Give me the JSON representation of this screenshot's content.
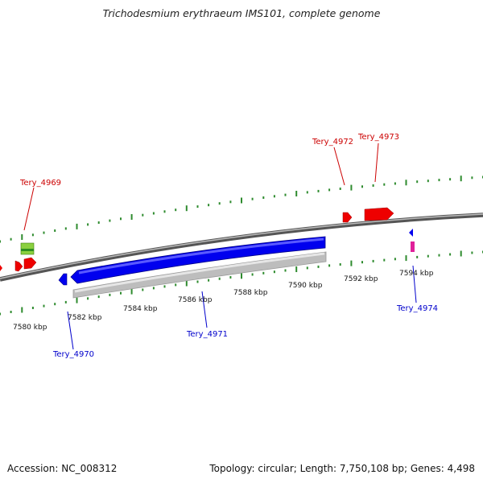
{
  "title": "Trichodesmium erythraeum IMS101, complete genome",
  "footer": {
    "accession": "Accession: NC_008312",
    "summary": "Topology: circular; Length: 7,750,108 bp; Genes: 4,498"
  },
  "colors": {
    "forward_gene": "#ff0000",
    "reverse_gene": "#0000ff",
    "backbone": "#777777",
    "ticks": "#2e8b2e",
    "cds_blue": "#0000ff",
    "cds_gray": "#c0c0c0",
    "rna_green": "#8bd040",
    "misc_magenta": "#e0209a"
  },
  "tick_labels": [
    "7580 kbp",
    "7582 kbp",
    "7584 kbp",
    "7586 kbp",
    "7588 kbp",
    "7590 kbp",
    "7592 kbp",
    "7594 kbp"
  ],
  "gene_labels": {
    "forward": [
      "Tery_4969",
      "Tery_4972",
      "Tery_4973"
    ],
    "reverse": [
      "Tery_4970",
      "Tery_4971",
      "Tery_4974"
    ]
  }
}
